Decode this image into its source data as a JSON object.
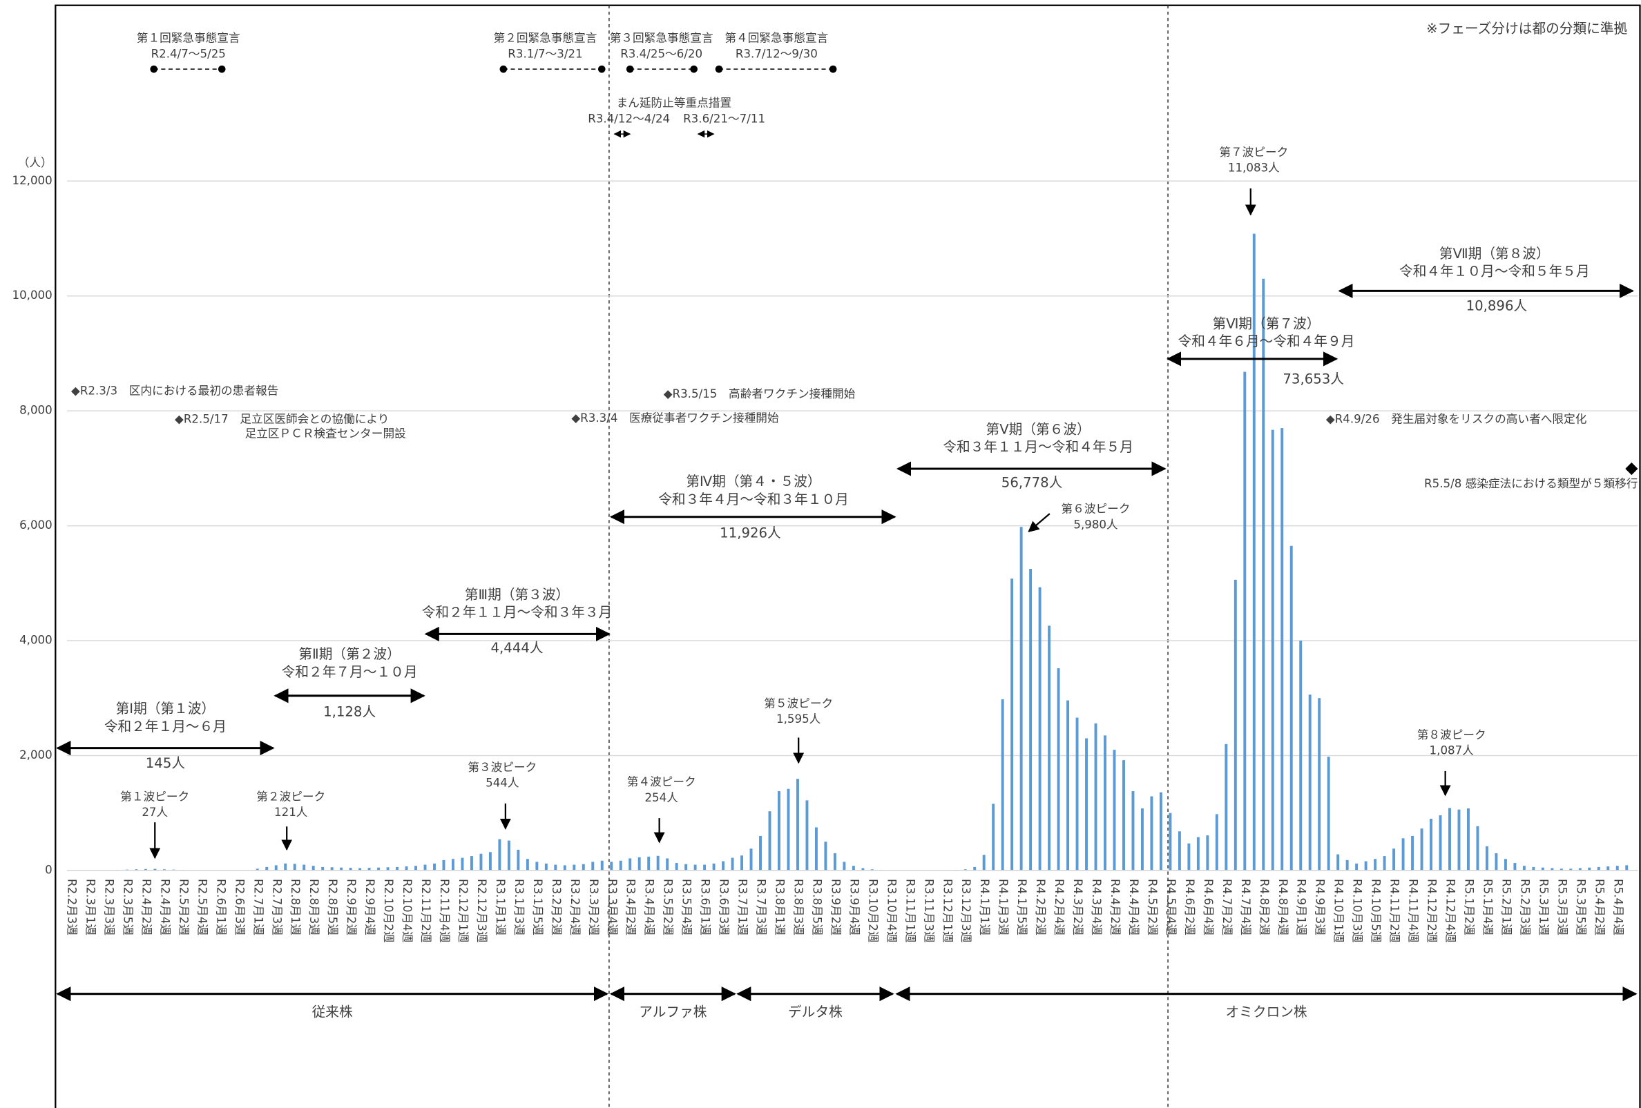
{
  "chart_data": {
    "type": "bar",
    "y_unit": "（人）",
    "color": "#5b9bd5",
    "grid": true,
    "ylim": [
      0,
      12000
    ],
    "yticks": [
      0,
      {
        "value": 2000,
        "label": "2,000"
      },
      {
        "value": 4000,
        "label": "4,000"
      },
      {
        "value": 6000,
        "label": "6,000"
      },
      {
        "value": 8000,
        "label": "8,000"
      },
      {
        "value": 10000,
        "label": "10,000"
      },
      {
        "value": 12000,
        "label": "12,000"
      }
    ],
    "categories": [
      "R2.2月3週",
      null,
      "R2.3月1週",
      null,
      "R2.3月3週",
      null,
      "R2.3月5週",
      null,
      "R2.4月2週",
      null,
      "R2.4月4週",
      null,
      "R2.5月2週",
      null,
      "R2.5月4週",
      null,
      "R2.6月1週",
      null,
      "R2.6月3週",
      null,
      "R2.7月1週",
      null,
      "R2.7月3週",
      null,
      "R2.8月1週",
      null,
      "R2.8月3週",
      null,
      "R2.8月5週",
      null,
      "R2.9月2週",
      null,
      "R2.9月4週",
      null,
      "R2.10月2週",
      null,
      "R2.10月4週",
      null,
      "R2.11月2週",
      null,
      "R2.11月4週",
      null,
      "R2.12月1週",
      null,
      "R2.12月3週",
      null,
      "R3.1月1週",
      null,
      "R3.1月3週",
      null,
      "R3.1月5週",
      null,
      "R3.2月2週",
      null,
      "R3.2月4週",
      null,
      "R3.3月2週",
      null,
      "R3.3月4週",
      null,
      "R3.4月2週",
      null,
      "R3.4月4週",
      null,
      "R3.5月2週",
      null,
      "R3.5月4週",
      null,
      "R3.6月1週",
      null,
      "R3.6月3週",
      null,
      "R3.7月1週",
      null,
      "R3.7月3週",
      null,
      "R3.8月1週",
      null,
      "R3.8月3週",
      null,
      "R3.8月5週",
      null,
      "R3.9月2週",
      null,
      "R3.9月4週",
      null,
      "R3.10月2週",
      null,
      "R3.10月4週",
      null,
      "R3.11月1週",
      null,
      "R3.11月3週",
      null,
      "R3.12月1週",
      null,
      "R3.12月3週",
      null,
      "R4.1月1週",
      null,
      "R4.1月3週",
      null,
      "R4.1月5週",
      null,
      "R4.2月2週",
      null,
      "R4.2月4週",
      null,
      "R4.3月2週",
      null,
      "R4.3月4週",
      null,
      "R4.4月2週",
      null,
      "R4.4月4週",
      null,
      "R4.5月2週",
      null,
      "R4.5月4週",
      null,
      "R4.6月2週",
      null,
      "R4.6月4週",
      null,
      "R4.7月2週",
      null,
      "R4.7月4週",
      null,
      "R4.8月2週",
      null,
      "R4.8月4週",
      null,
      "R4.9月1週",
      null,
      "R4.9月3週",
      null,
      "R4.10月1週",
      null,
      "R4.10月3週",
      null,
      "R4.10月5週",
      null,
      "R4.11月2週",
      null,
      "R4.11月4週",
      null,
      "R4.12月2週",
      null,
      "R4.12月4週",
      null,
      "R5.1月2週",
      null,
      "R5.1月4週",
      null,
      "R5.2月1週",
      null,
      "R5.2月3週",
      null,
      "R5.3月1週",
      null,
      "R5.3月3週",
      null,
      "R5.3月5週",
      null,
      "R5.4月2週",
      null,
      "R5.4月4週",
      null
    ],
    "values": [
      0,
      0,
      1,
      2,
      5,
      10,
      15,
      20,
      25,
      27,
      20,
      15,
      10,
      5,
      3,
      2,
      1,
      1,
      2,
      5,
      30,
      60,
      90,
      121,
      115,
      100,
      80,
      60,
      55,
      50,
      45,
      40,
      45,
      50,
      55,
      60,
      70,
      80,
      100,
      120,
      180,
      200,
      220,
      250,
      290,
      320,
      544,
      520,
      360,
      200,
      150,
      120,
      100,
      90,
      100,
      110,
      150,
      170,
      150,
      170,
      210,
      230,
      240,
      254,
      210,
      130,
      110,
      100,
      100,
      120,
      160,
      220,
      260,
      380,
      600,
      1030,
      1380,
      1420,
      1595,
      1220,
      750,
      500,
      300,
      150,
      80,
      40,
      20,
      10,
      5,
      3,
      2,
      2,
      2,
      3,
      5,
      10,
      20,
      60,
      270,
      1160,
      2980,
      5080,
      5980,
      5250,
      4930,
      4260,
      3520,
      2960,
      2660,
      2300,
      2560,
      2350,
      2100,
      1920,
      1380,
      1080,
      1290,
      1360,
      1000,
      680,
      470,
      580,
      610,
      980,
      2200,
      5060,
      8680,
      11083,
      10300,
      7670,
      7700,
      5650,
      4000,
      3060,
      3000,
      1980,
      280,
      180,
      120,
      160,
      200,
      250,
      380,
      560,
      600,
      730,
      900,
      960,
      1087,
      1060,
      1080,
      770,
      420,
      300,
      200,
      130,
      80,
      60,
      50,
      40,
      30,
      30,
      40,
      50,
      60,
      70,
      80,
      90
    ],
    "note": "※フェーズ分けは都の分類に準拠",
    "declarations": [
      {
        "name": "第１回緊急事態宣言",
        "period": "R2.4/7〜5/25"
      },
      {
        "name": "第２回緊急事態宣言",
        "period": "R3.1/7〜3/21"
      },
      {
        "name": "第３回緊急事態宣言",
        "period": "R3.4/25〜6/20"
      },
      {
        "name": "第４回緊急事態宣言",
        "period": "R3.7/12〜9/30"
      }
    ],
    "priority_measures": {
      "name": "まん延防止等重点措置",
      "periods": [
        "R3.4/12〜4/24",
        "R3.6/21〜7/11"
      ]
    },
    "events": [
      "◆R2.3/3　区内における最初の患者報告",
      "◆R2.5/17　足立区医師会との協働により",
      "足立区ＰＣＲ検査センター開設",
      "◆R3.3/4　医療従事者ワクチン接種開始",
      "◆R3.5/15　高齢者ワクチン接種開始",
      "◆R4.9/26　発生届対象をリスクの高い者へ限定化",
      "R5.5/8 感染症法における類型が５類移行"
    ],
    "phases": [
      {
        "name": "第Ⅰ期（第１波）",
        "period": "令和２年１月〜６月",
        "total": "145人"
      },
      {
        "name": "第Ⅱ期（第２波）",
        "period": "令和２年７月〜１０月",
        "total": "1,128人"
      },
      {
        "name": "第Ⅲ期（第３波）",
        "period": "令和２年１１月〜令和３年３月",
        "total": "4,444人"
      },
      {
        "name": "第Ⅳ期（第４・５波）",
        "period": "令和３年４月〜令和３年１０月",
        "total": "11,926人"
      },
      {
        "name": "第Ⅴ期（第６波）",
        "period": "令和３年１１月〜令和４年５月",
        "total": "56,778人"
      },
      {
        "name": "第Ⅵ期（第７波）",
        "period": "令和４年６月〜令和４年９月",
        "total": "73,653人"
      },
      {
        "name": "第Ⅶ期（第８波）",
        "period": "令和４年１０月〜令和５年５月",
        "total": "10,896人"
      }
    ],
    "peaks": [
      {
        "name": "第１波ピーク",
        "label": "27人"
      },
      {
        "name": "第２波ピーク",
        "label": "121人"
      },
      {
        "name": "第３波ピーク",
        "label": "544人"
      },
      {
        "name": "第４波ピーク",
        "label": "254人"
      },
      {
        "name": "第５波ピーク",
        "label": "1,595人"
      },
      {
        "name": "第６波ピーク",
        "label": "5,980人"
      },
      {
        "name": "第７波ピーク",
        "label": "11,083人"
      },
      {
        "name": "第８波ピーク",
        "label": "1,087人"
      }
    ],
    "strains": [
      "従来株",
      "アルファ株",
      "デルタ株",
      "オミクロン株"
    ]
  }
}
